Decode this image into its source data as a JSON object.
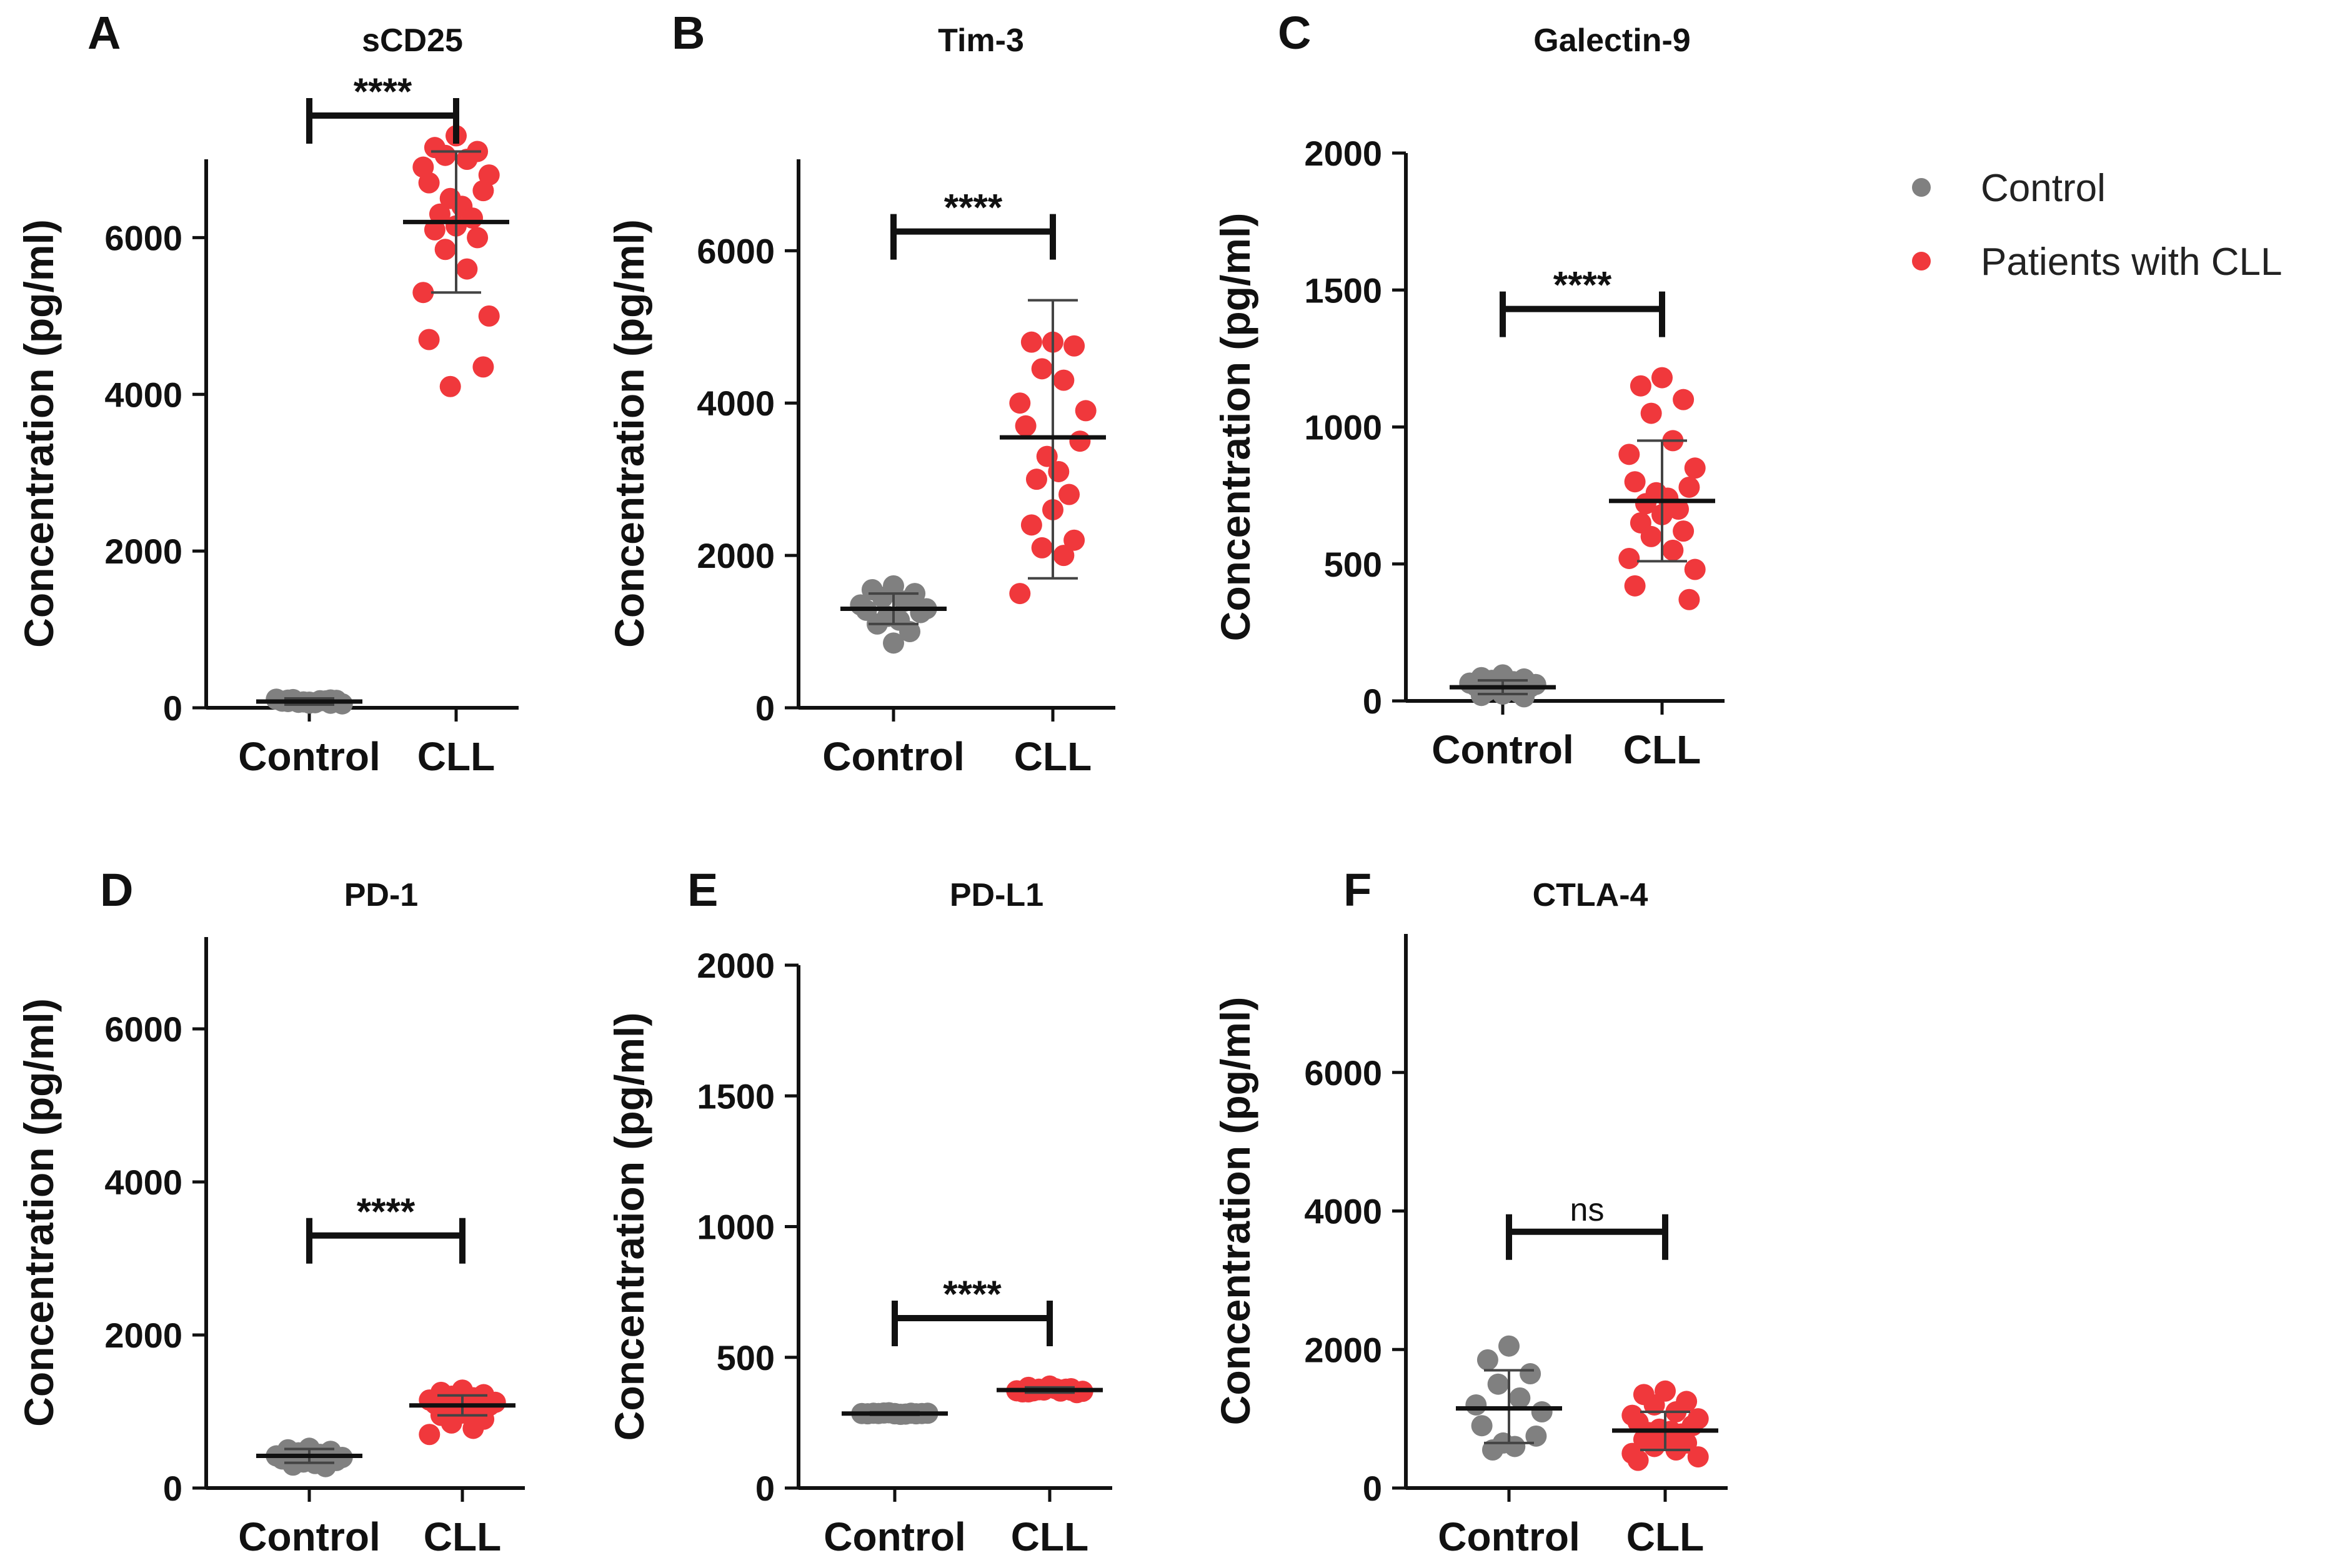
{
  "chart_data": [
    {
      "panel": "A",
      "title": "sCD25",
      "type": "scatter",
      "ylabel": "Concentration (pg/ml)",
      "ylim": [
        0,
        7000
      ],
      "yticks": [
        0,
        2000,
        4000,
        6000
      ],
      "categories": [
        "Control",
        "CLL"
      ],
      "series": [
        {
          "name": "Control",
          "color": "#808080",
          "summary": {
            "mean": 80,
            "sd_low": 40,
            "sd_high": 120
          },
          "values": [
            60,
            80,
            100,
            70,
            90,
            110,
            50,
            85,
            95,
            75,
            65,
            105,
            88,
            72,
            98,
            58
          ]
        },
        {
          "name": "CLL",
          "color": "#F0383C",
          "summary": {
            "mean": 6200,
            "sd_low": 5300,
            "sd_high": 7100
          },
          "values": [
            7300,
            7150,
            7100,
            7050,
            7000,
            6900,
            6800,
            6700,
            6600,
            6500,
            6400,
            6300,
            6250,
            6150,
            6100,
            6000,
            5850,
            5600,
            5300,
            5000,
            4700,
            4350,
            4100
          ]
        }
      ],
      "significance": "****"
    },
    {
      "panel": "B",
      "title": "Tim-3",
      "type": "scatter",
      "ylabel": "Concentration (pg/ml)",
      "ylim": [
        0,
        7200
      ],
      "yticks": [
        0,
        2000,
        4000,
        6000
      ],
      "categories": [
        "Control",
        "CLL"
      ],
      "series": [
        {
          "name": "Control",
          "color": "#808080",
          "summary": {
            "mean": 1300,
            "sd_low": 1100,
            "sd_high": 1500
          },
          "values": [
            1600,
            1550,
            1500,
            1450,
            1400,
            1350,
            1300,
            1280,
            1250,
            1200,
            1150,
            1100,
            1000,
            850
          ]
        },
        {
          "name": "CLL",
          "color": "#F0383C",
          "summary": {
            "mean": 3550,
            "sd_low": 1700,
            "sd_high": 5350
          },
          "values": [
            4800,
            4800,
            4750,
            4450,
            4300,
            4000,
            3900,
            3700,
            3500,
            3300,
            3100,
            3000,
            2800,
            2600,
            2400,
            2200,
            2100,
            2000,
            1500
          ]
        }
      ],
      "significance": "****"
    },
    {
      "panel": "C",
      "title": "Galectin-9",
      "type": "scatter",
      "ylabel": "Concentration (pg/ml)",
      "ylim": [
        0,
        2000
      ],
      "yticks": [
        0,
        500,
        1000,
        1500,
        2000
      ],
      "categories": [
        "Control",
        "CLL"
      ],
      "series": [
        {
          "name": "Control",
          "color": "#808080",
          "summary": {
            "mean": 50,
            "sd_low": 25,
            "sd_high": 75
          },
          "values": [
            95,
            85,
            80,
            75,
            70,
            65,
            60,
            55,
            50,
            45,
            40,
            35,
            30,
            25,
            20,
            15
          ]
        },
        {
          "name": "CLL",
          "color": "#F0383C",
          "summary": {
            "mean": 730,
            "sd_low": 510,
            "sd_high": 950
          },
          "values": [
            1180,
            1150,
            1100,
            1050,
            950,
            900,
            850,
            800,
            780,
            760,
            740,
            720,
            700,
            680,
            650,
            620,
            600,
            550,
            520,
            480,
            420,
            370
          ]
        }
      ],
      "significance": "****"
    },
    {
      "panel": "D",
      "title": "PD-1",
      "type": "scatter",
      "ylabel": "Concentration (pg/ml)",
      "ylim": [
        0,
        7200
      ],
      "yticks": [
        0,
        2000,
        4000,
        6000
      ],
      "categories": [
        "Control",
        "CLL"
      ],
      "series": [
        {
          "name": "Control",
          "color": "#808080",
          "summary": {
            "mean": 420,
            "sd_low": 330,
            "sd_high": 510
          },
          "values": [
            520,
            500,
            480,
            460,
            440,
            420,
            400,
            380,
            360,
            340,
            320,
            300,
            280
          ]
        },
        {
          "name": "CLL",
          "color": "#F0383C",
          "summary": {
            "mean": 1080,
            "sd_low": 950,
            "sd_high": 1210
          },
          "values": [
            1280,
            1250,
            1220,
            1200,
            1180,
            1150,
            1120,
            1100,
            1080,
            1060,
            1040,
            1020,
            1000,
            980,
            950,
            900,
            850,
            780,
            700
          ]
        }
      ],
      "significance": "****"
    },
    {
      "panel": "E",
      "title": "PD-L1",
      "type": "scatter",
      "ylabel": "Concentration (pg/ml)",
      "ylim": [
        0,
        2000
      ],
      "yticks": [
        0,
        500,
        1000,
        "1500",
        2000
      ],
      "categories": [
        "Control",
        "CLL"
      ],
      "series": [
        {
          "name": "Control",
          "color": "#808080",
          "summary": {
            "mean": 285,
            "sd_low": 280,
            "sd_high": 290
          },
          "values": [
            285,
            286,
            284,
            287,
            283,
            285,
            286,
            284,
            285,
            288,
            282,
            285,
            286,
            284
          ]
        },
        {
          "name": "CLL",
          "color": "#F0383C",
          "summary": {
            "mean": 375,
            "sd_low": 365,
            "sd_high": 385
          },
          "values": [
            390,
            385,
            380,
            378,
            375,
            372,
            370,
            368,
            365,
            375,
            380,
            372,
            378,
            385,
            368,
            374,
            376,
            371
          ]
        }
      ],
      "significance": "****"
    },
    {
      "panel": "F",
      "title": "CTLA-4",
      "type": "scatter",
      "ylabel": "Concentration (pg/ml)",
      "ylim": [
        0,
        8000
      ],
      "yticks": [
        0,
        2000,
        4000,
        6000
      ],
      "categories": [
        "Control",
        "CLL"
      ],
      "series": [
        {
          "name": "Control",
          "color": "#808080",
          "summary": {
            "mean": 1150,
            "sd_low": 650,
            "sd_high": 1700
          },
          "values": [
            2050,
            1850,
            1650,
            1500,
            1300,
            1200,
            1100,
            900,
            750,
            650,
            600,
            550
          ]
        },
        {
          "name": "CLL",
          "color": "#F0383C",
          "summary": {
            "mean": 830,
            "sd_low": 550,
            "sd_high": 1100
          },
          "values": [
            1400,
            1350,
            1250,
            1200,
            1100,
            1050,
            1000,
            950,
            900,
            850,
            820,
            800,
            780,
            750,
            700,
            650,
            600,
            550,
            500,
            450,
            400
          ]
        }
      ],
      "significance": "ns"
    }
  ],
  "legend": [
    {
      "label": "Control",
      "color": "#808080"
    },
    {
      "label": "Patients with CLL",
      "color": "#F0383C"
    }
  ]
}
